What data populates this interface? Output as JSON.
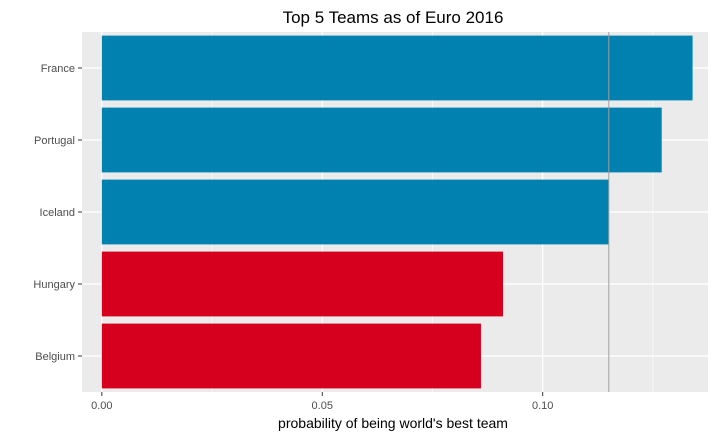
{
  "chart_data": {
    "type": "bar",
    "orientation": "horizontal",
    "title": "Top 5 Teams as of Euro 2016",
    "xlabel": "probability of being world's best team",
    "ylabel": "",
    "categories": [
      "France",
      "Portugal",
      "Iceland",
      "Hungary",
      "Belgium"
    ],
    "values": [
      0.134,
      0.127,
      0.115,
      0.091,
      0.086
    ],
    "bar_colors": [
      "#0081B0",
      "#0081B0",
      "#0081B0",
      "#D6001E",
      "#D6001E"
    ],
    "xlim": [
      -0.0045,
      0.1375
    ],
    "xticks": [
      0.0,
      0.05,
      0.1
    ],
    "xtick_labels": [
      "0.00",
      "0.05",
      "0.10"
    ],
    "reference_line": 0.115,
    "grid": true,
    "panel_background": "#EBEBEB",
    "grid_color": "#FFFFFF",
    "reference_line_color": "#A0A0A0"
  }
}
